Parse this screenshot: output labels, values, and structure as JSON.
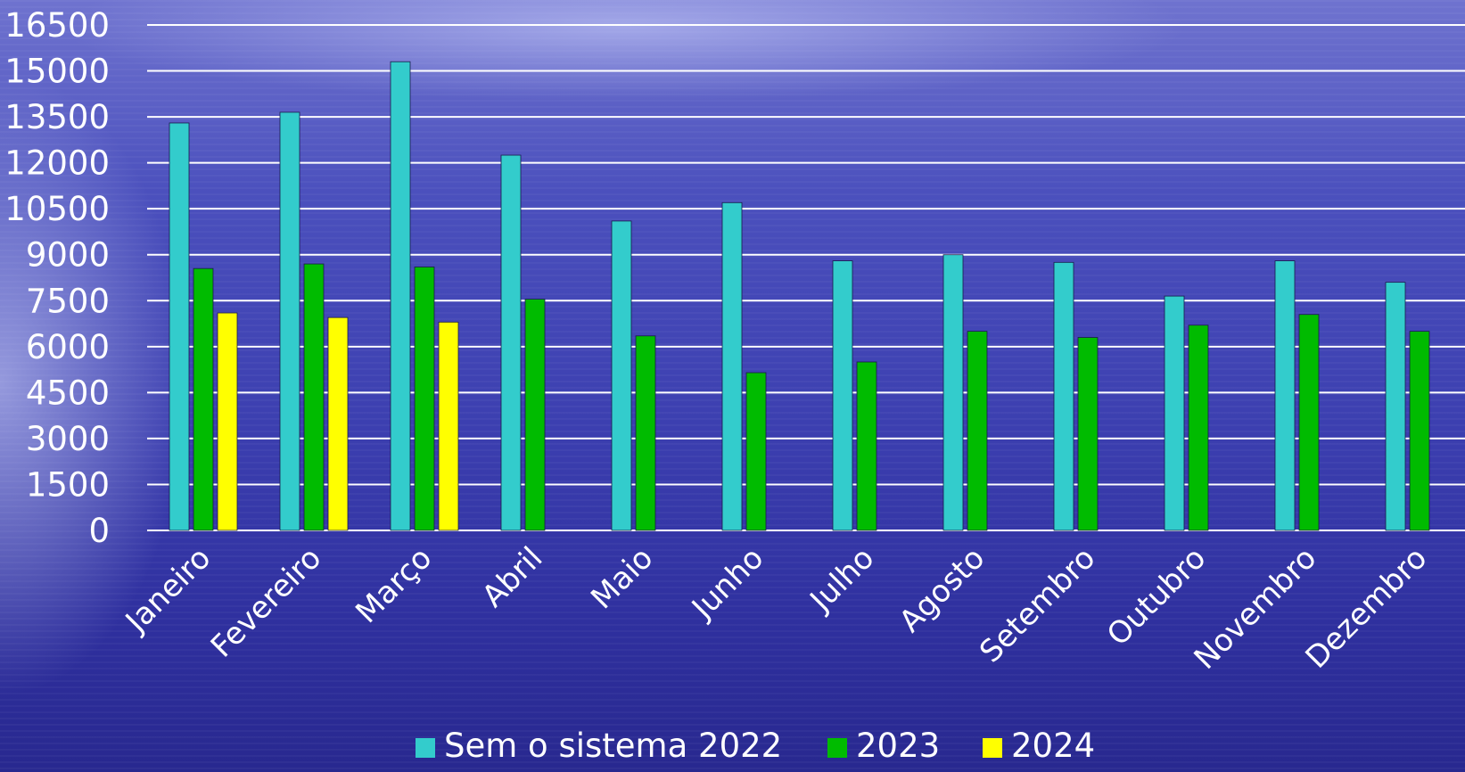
{
  "chart_data": {
    "type": "bar",
    "categories": [
      "Janeiro",
      "Fevereiro",
      "Março",
      "Abril",
      "Maio",
      "Junho",
      "Julho",
      "Agosto",
      "Setembro",
      "Outubro",
      "Novembro",
      "Dezembro"
    ],
    "series": [
      {
        "name": "Sem o sistema 2022",
        "color": "#33cccc",
        "values": [
          13300,
          13650,
          15300,
          12250,
          10100,
          10700,
          8800,
          9000,
          8750,
          7650,
          8800,
          8100
        ]
      },
      {
        "name": "2023",
        "color": "#00bb00",
        "values": [
          8550,
          8700,
          8600,
          7550,
          6350,
          5150,
          5500,
          6500,
          6300,
          6700,
          7050,
          6500
        ]
      },
      {
        "name": "2024",
        "color": "#ffff00",
        "values": [
          7100,
          6950,
          6800,
          null,
          null,
          null,
          null,
          null,
          null,
          null,
          null,
          null
        ]
      }
    ],
    "yticks": [
      "16500",
      "15000",
      "13500",
      "12000",
      "10500",
      "9000",
      "7500",
      "6000",
      "4500",
      "3000",
      "1500",
      "0"
    ],
    "ylim": [
      0,
      16500
    ],
    "grid": true,
    "gridline_color": "#ffffff",
    "legend_position": "bottom",
    "title": "",
    "xlabel": "",
    "ylabel": ""
  }
}
